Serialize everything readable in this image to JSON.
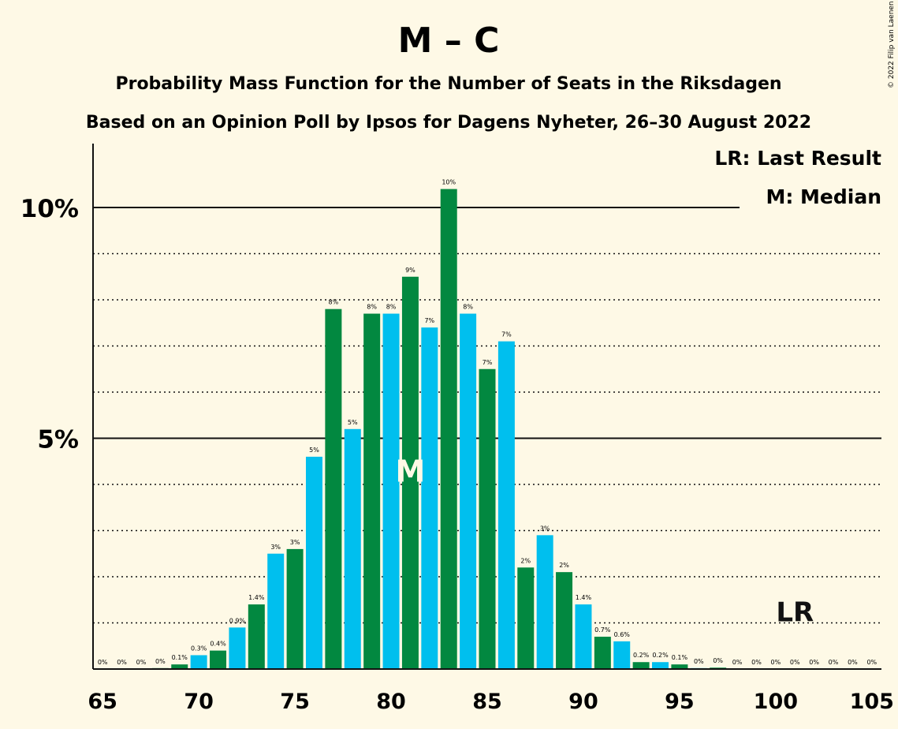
{
  "title": "M – C",
  "subtitle1": "Probability Mass Function for the Number of Seats in the Riksdagen",
  "subtitle2": "Based on an Opinion Poll by Ipsos for Dagens Nyheter, 26–30 August 2022",
  "copyright": "© 2022 Filip van Laenen",
  "legend": {
    "lr": "LR: Last Result",
    "median": "M: Median"
  },
  "markers": {
    "median_label": "M",
    "median_seat": 81,
    "last_result_label": "LR",
    "last_result_seat": 101
  },
  "colors": {
    "green": "#028840",
    "blue": "#00bfee",
    "background": "#fef9e6"
  },
  "chart_data": {
    "type": "bar",
    "x": [
      65,
      66,
      67,
      68,
      69,
      70,
      71,
      72,
      73,
      74,
      75,
      76,
      77,
      78,
      79,
      80,
      81,
      82,
      83,
      84,
      85,
      86,
      87,
      88,
      89,
      90,
      91,
      92,
      93,
      94,
      95,
      96,
      97,
      98,
      99,
      100,
      101,
      102,
      103,
      104,
      105
    ],
    "values": [
      0,
      0,
      0,
      0.02,
      0.1,
      0.3,
      0.4,
      0.9,
      1.4,
      2.5,
      2.6,
      4.6,
      7.8,
      5.2,
      7.7,
      7.7,
      8.5,
      7.4,
      10.4,
      7.7,
      6.5,
      7.1,
      2.2,
      2.9,
      2.1,
      1.4,
      0.7,
      0.6,
      0.15,
      0.15,
      0.1,
      0.02,
      0.03,
      0,
      0,
      0,
      0,
      0,
      0,
      0,
      0
    ],
    "labels": [
      "0%",
      "0%",
      "0%",
      "0%",
      "0.1%",
      "0.3%",
      "0.4%",
      "0.9%",
      "1.4%",
      "3%",
      "3%",
      "5%",
      "8%",
      "5%",
      "8%",
      "8%",
      "9%",
      "7%",
      "10%",
      "8%",
      "7%",
      "7%",
      "2%",
      "3%",
      "2%",
      "1.4%",
      "0.7%",
      "0.6%",
      "0.2%",
      "0.2%",
      "0.1%",
      "0%",
      "0%",
      "0%",
      "0%",
      "0%",
      "0%",
      "0%",
      "0%",
      "0%",
      "0%"
    ],
    "series_colors": [
      "blue",
      "green",
      "blue",
      "green",
      "green",
      "blue",
      "green",
      "blue",
      "green",
      "blue",
      "green",
      "blue",
      "green",
      "blue",
      "green",
      "blue",
      "green",
      "blue",
      "green",
      "blue",
      "green",
      "blue",
      "green",
      "blue",
      "green",
      "blue",
      "green",
      "blue",
      "green",
      "blue",
      "green",
      "blue",
      "green",
      "blue",
      "green",
      "blue",
      "green",
      "blue",
      "green",
      "blue",
      "green"
    ],
    "xticks": [
      "65",
      "70",
      "75",
      "80",
      "85",
      "90",
      "95",
      "100",
      "105"
    ],
    "yticks": [
      "5%",
      "10%"
    ],
    "ylim": [
      0,
      11.3
    ],
    "xlim": [
      65,
      105
    ],
    "grid": "dotted at every 1%, solid at 5% and 10%"
  }
}
